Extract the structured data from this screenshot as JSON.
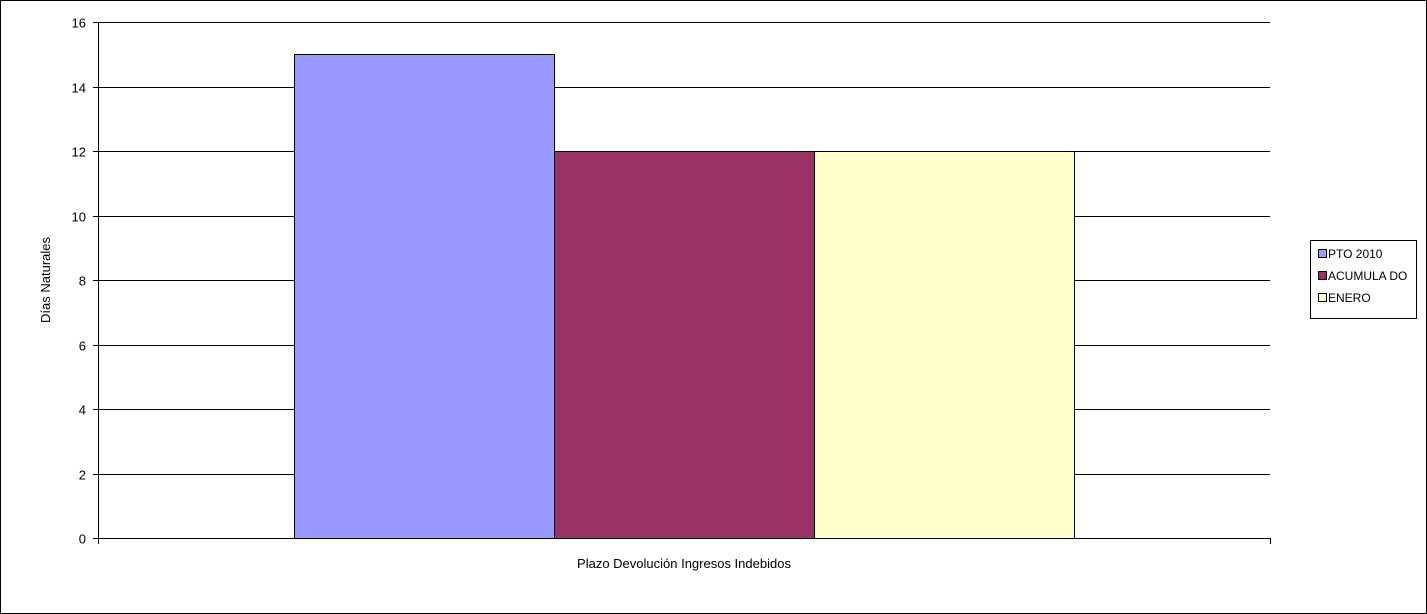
{
  "chart_data": {
    "type": "bar",
    "categories": [
      "Plazo Devolución Ingresos Indebidos"
    ],
    "series": [
      {
        "name": "PTO 2010",
        "values": [
          15
        ],
        "color": "#9999ff"
      },
      {
        "name": "ACUMULA DO",
        "values": [
          12
        ],
        "color": "#993366"
      },
      {
        "name": "ENERO",
        "values": [
          12
        ],
        "color": "#ffffcc"
      }
    ],
    "xlabel": "Plazo Devolución Ingresos Indebidos",
    "ylabel": "Días Naturales",
    "ylim": [
      0,
      16
    ],
    "yticks": [
      0,
      2,
      4,
      6,
      8,
      10,
      12,
      14,
      16
    ],
    "grid": true,
    "legend_position": "right"
  }
}
